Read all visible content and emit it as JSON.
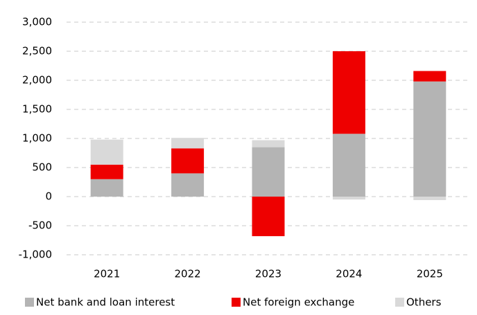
{
  "chart_data": {
    "type": "stacked-bar",
    "categories": [
      "2021",
      "2022",
      "2023",
      "2024",
      "2025"
    ],
    "series": [
      {
        "name": "Net bank and loan interest",
        "color": "#b4b4b4",
        "values": [
          300,
          400,
          850,
          1080,
          1980
        ]
      },
      {
        "name": "Net foreign exchange",
        "color": "#ee0000",
        "values": [
          250,
          430,
          -680,
          1420,
          180
        ]
      },
      {
        "name": "Others",
        "color": "#d9d9d9",
        "values": [
          430,
          180,
          120,
          -50,
          -60
        ]
      }
    ],
    "ylim": [
      -1000,
      3000
    ],
    "yticks": [
      {
        "value": -1000,
        "label": "-1,000"
      },
      -500,
      0,
      500,
      {
        "value": 1000,
        "label": "1,000"
      },
      {
        "value": 1500,
        "label": "1,500"
      },
      {
        "value": 2000,
        "label": "2,000"
      },
      {
        "value": 2500,
        "label": "2,500"
      },
      {
        "value": 3000,
        "label": "3,000"
      }
    ],
    "grid": true,
    "legend": "bottom"
  }
}
